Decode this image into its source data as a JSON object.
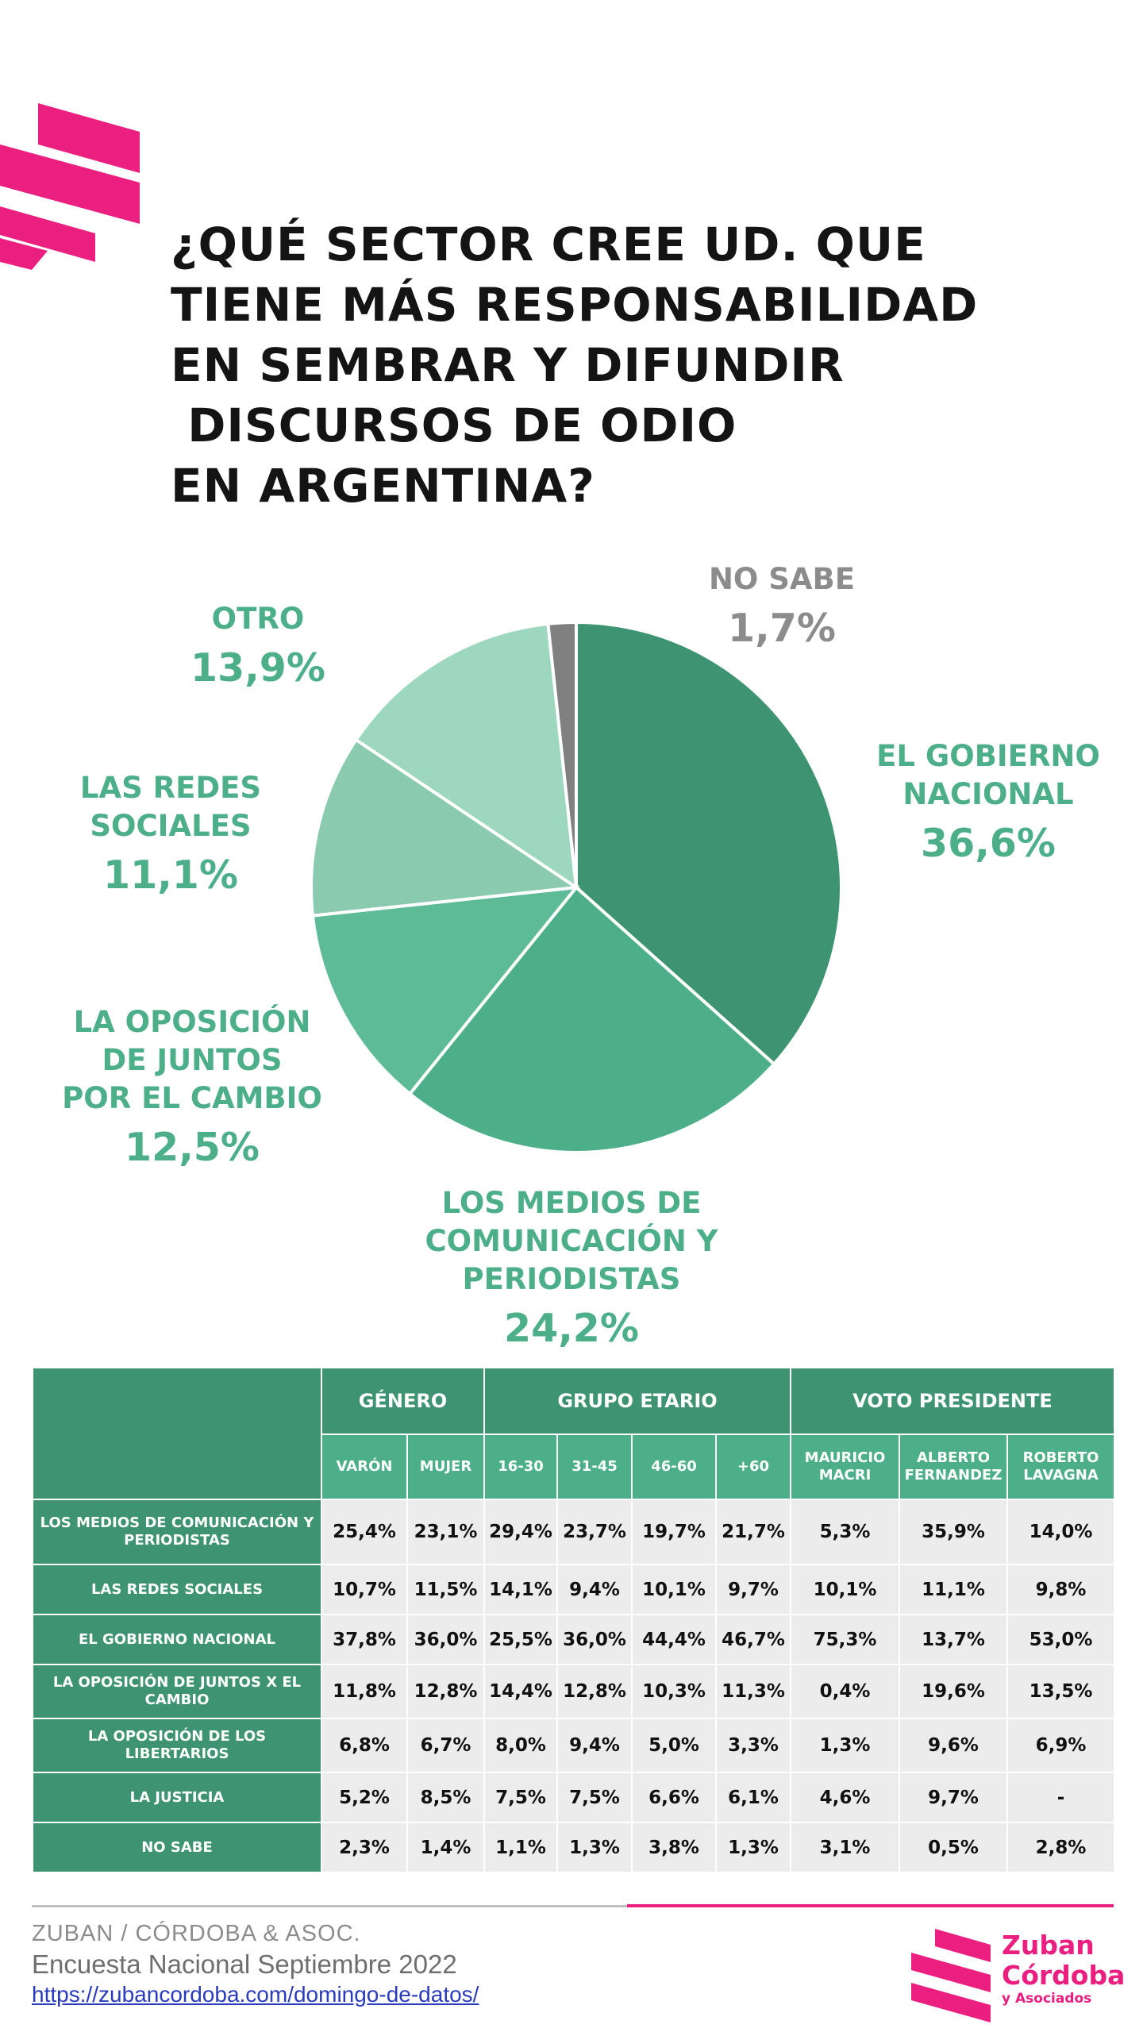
{
  "title_lines": [
    "¿QUÉ SECTOR CREE UD. QUE",
    "TIENE MÁS RESPONSABILIDAD",
    "EN SEMBRAR Y DIFUNDIR",
    " DISCURSOS DE ODIO",
    "EN ARGENTINA?"
  ],
  "colors": {
    "brand_pink": "#ea1f80",
    "dark_green": "#3e9373",
    "label_green": "#4caf8a",
    "grey": "#808080"
  },
  "chart_data": {
    "type": "pie",
    "start": "top, clockwise",
    "slices": [
      {
        "label_lines": [
          "EL GOBIERNO",
          "NACIONAL"
        ],
        "value_text": "36,6%",
        "value": 36.6,
        "color": "#3e9373"
      },
      {
        "label_lines": [
          "LOS MEDIOS DE",
          "COMUNICACIÓN Y",
          "PERIODISTAS"
        ],
        "value_text": "24,2%",
        "value": 24.2,
        "color": "#4caf8a"
      },
      {
        "label_lines": [
          "LA OPOSICIÓN",
          "DE JUNTOS",
          "POR EL CAMBIO"
        ],
        "value_text": "12,5%",
        "value": 12.5,
        "color": "#5dbb98"
      },
      {
        "label_lines": [
          "LAS REDES",
          "SOCIALES"
        ],
        "value_text": "11,1%",
        "value": 11.1,
        "color": "#8acbb0"
      },
      {
        "label_lines": [
          "OTRO"
        ],
        "value_text": "13,9%",
        "value": 13.9,
        "color": "#9ed7bf"
      },
      {
        "label_lines": [
          "NO SABE"
        ],
        "value_text": "1,7%",
        "value": 1.7,
        "color": "#808080"
      }
    ]
  },
  "table": {
    "groups": [
      {
        "label": "GÉNERO",
        "span": 2
      },
      {
        "label": "GRUPO ETARIO",
        "span": 4
      },
      {
        "label": "VOTO PRESIDENTE",
        "span": 3
      }
    ],
    "columns": [
      "VARÓN",
      "MUJER",
      "16-30",
      "31-45",
      "46-60",
      "+60",
      "MAURICIO MACRI",
      "ALBERTO FERNANDEZ",
      "ROBERTO LAVAGNA"
    ],
    "rows": [
      {
        "label": "LOS MEDIOS DE COMUNICACIÓN Y PERIODISTAS",
        "values": [
          "25,4%",
          "23,1%",
          "29,4%",
          "23,7%",
          "19,7%",
          "21,7%",
          "5,3%",
          "35,9%",
          "14,0%"
        ]
      },
      {
        "label": "LAS REDES SOCIALES",
        "values": [
          "10,7%",
          "11,5%",
          "14,1%",
          "9,4%",
          "10,1%",
          "9,7%",
          "10,1%",
          "11,1%",
          "9,8%"
        ]
      },
      {
        "label": "EL GOBIERNO NACIONAL",
        "values": [
          "37,8%",
          "36,0%",
          "25,5%",
          "36,0%",
          "44,4%",
          "46,7%",
          "75,3%",
          "13,7%",
          "53,0%"
        ]
      },
      {
        "label": "LA OPOSICIÓN DE JUNTOS X EL CAMBIO",
        "values": [
          "11,8%",
          "12,8%",
          "14,4%",
          "12,8%",
          "10,3%",
          "11,3%",
          "0,4%",
          "19,6%",
          "13,5%"
        ]
      },
      {
        "label": "LA OPOSICIÓN DE LOS LIBERTARIOS",
        "values": [
          "6,8%",
          "6,7%",
          "8,0%",
          "9,4%",
          "5,0%",
          "3,3%",
          "1,3%",
          "9,6%",
          "6,9%"
        ]
      },
      {
        "label": "LA JUSTICIA",
        "values": [
          "5,2%",
          "8,5%",
          "7,5%",
          "7,5%",
          "6,6%",
          "6,1%",
          "4,6%",
          "9,7%",
          "-"
        ]
      },
      {
        "label": "NO SABE",
        "values": [
          "2,3%",
          "1,4%",
          "1,1%",
          "1,3%",
          "3,8%",
          "1,3%",
          "3,1%",
          "0,5%",
          "2,8%"
        ]
      }
    ]
  },
  "footer": {
    "source": "ZUBAN / CÓRDOBA & ASOC.",
    "survey": "Encuesta Nacional Septiembre 2022",
    "link": "https://zubancordoba.com/domingo-de-datos/",
    "brand_line1": "Zuban",
    "brand_line2": "Córdoba",
    "brand_line3": "y Asociados"
  }
}
